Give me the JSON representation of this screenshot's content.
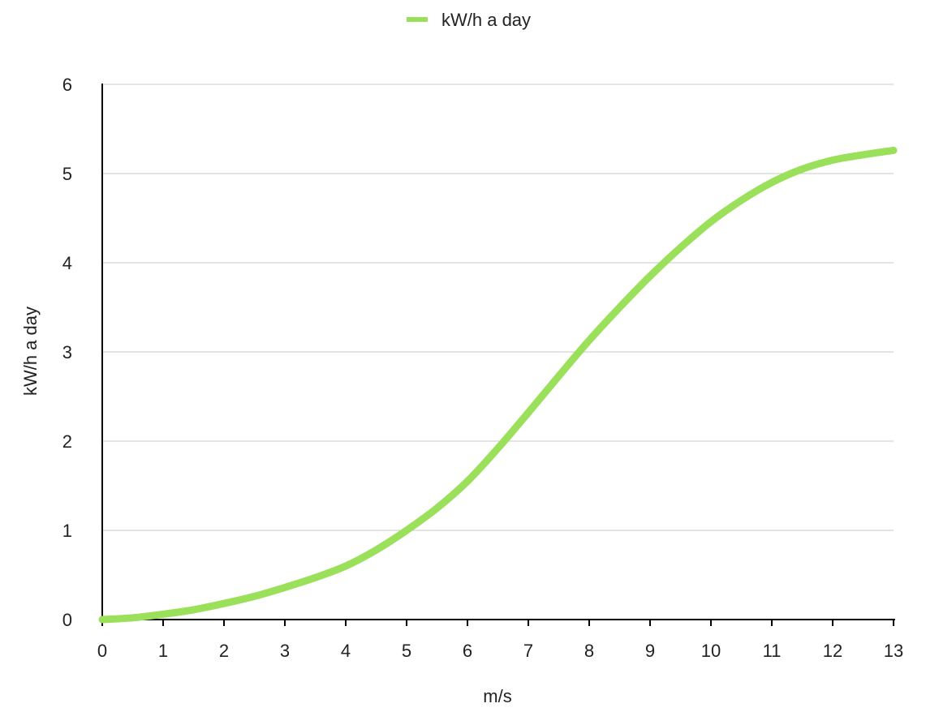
{
  "chart_data": {
    "type": "line",
    "title": "",
    "xlabel": "m/s",
    "ylabel": "kW/h a day",
    "xlim": [
      0,
      13
    ],
    "ylim": [
      0,
      6
    ],
    "x_ticks": [
      0,
      1,
      2,
      3,
      4,
      5,
      6,
      7,
      8,
      9,
      10,
      11,
      12,
      13
    ],
    "y_ticks": [
      0,
      1,
      2,
      3,
      4,
      5,
      6
    ],
    "grid": "horizontal",
    "legend_position": "top-center",
    "series": [
      {
        "name": "kW/h a day",
        "color": "#9be05a",
        "x": [
          0,
          0.5,
          1,
          1.5,
          2,
          2.5,
          3,
          3.5,
          4,
          4.5,
          5,
          5.5,
          6,
          6.5,
          7,
          7.5,
          8,
          8.5,
          9,
          9.5,
          10,
          10.5,
          11,
          11.5,
          12,
          12.5,
          13
        ],
        "values": [
          0.0,
          0.02,
          0.06,
          0.11,
          0.18,
          0.26,
          0.36,
          0.47,
          0.6,
          0.78,
          1.0,
          1.25,
          1.55,
          1.92,
          2.32,
          2.73,
          3.13,
          3.5,
          3.85,
          4.17,
          4.46,
          4.7,
          4.9,
          5.05,
          5.15,
          5.21,
          5.26
        ]
      }
    ]
  }
}
